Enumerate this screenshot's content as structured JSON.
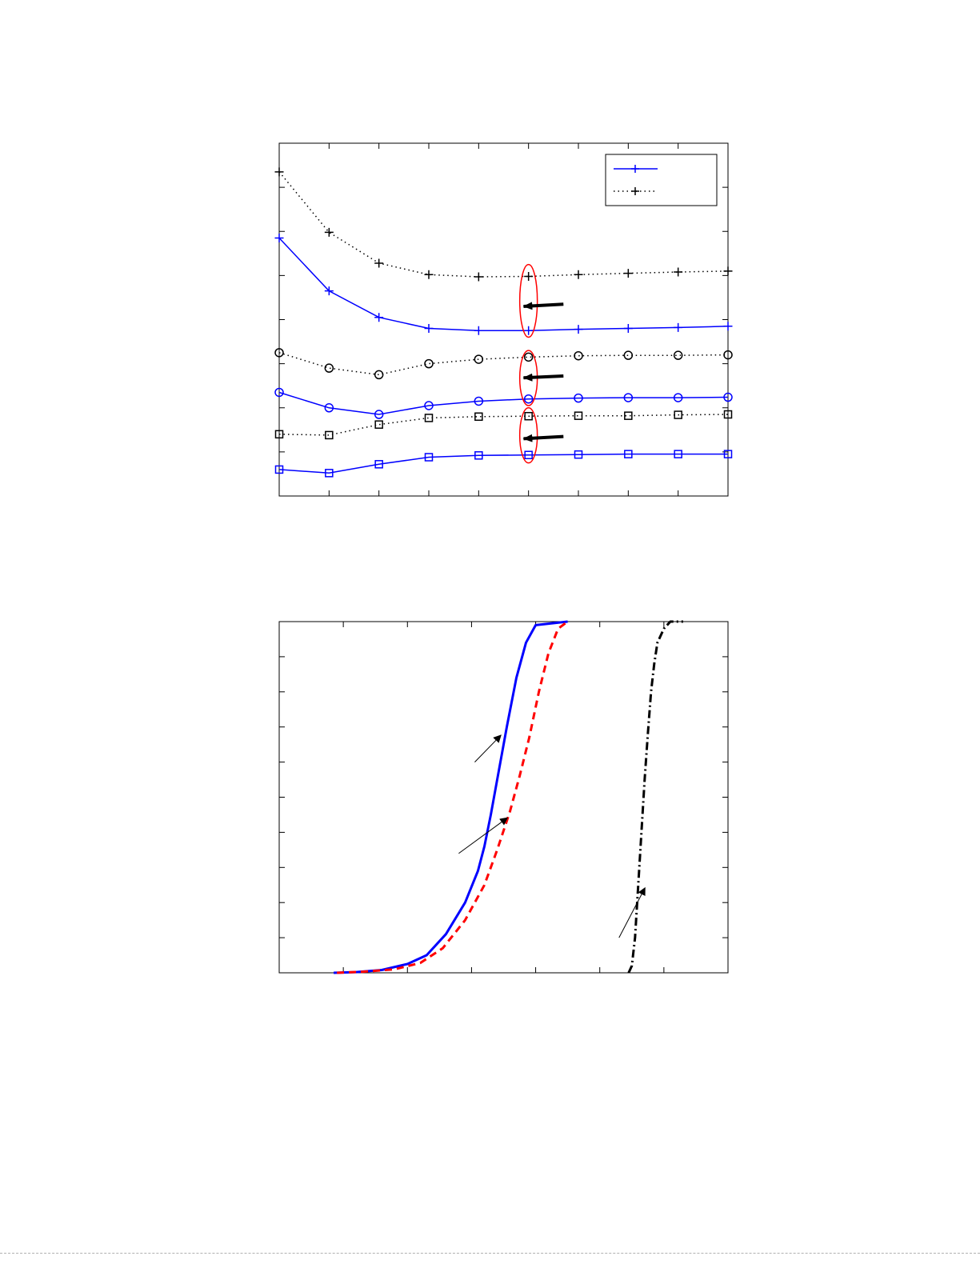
{
  "chart_data": [
    {
      "type": "line",
      "x": [
        1,
        2,
        3,
        4,
        5,
        6,
        7,
        8,
        9,
        10
      ],
      "xlim": [
        1,
        10
      ],
      "ylim": [
        0,
        8
      ],
      "grid": false,
      "legend": {
        "placement": "top-right",
        "entries": [
          "",
          ""
        ]
      },
      "series": [
        {
          "marker": "plus",
          "style": "solid",
          "color": "#0000ff",
          "values": [
            5.85,
            4.65,
            4.05,
            3.8,
            3.75,
            3.75,
            3.78,
            3.8,
            3.82,
            3.85
          ]
        },
        {
          "marker": "plus",
          "style": "dotted",
          "color": "#000000",
          "values": [
            7.35,
            5.98,
            5.28,
            5.02,
            4.97,
            4.98,
            5.02,
            5.05,
            5.08,
            5.1
          ]
        },
        {
          "marker": "circle",
          "style": "solid",
          "color": "#0000ff",
          "values": [
            2.35,
            2.0,
            1.85,
            2.05,
            2.15,
            2.2,
            2.22,
            2.23,
            2.23,
            2.24
          ]
        },
        {
          "marker": "circle",
          "style": "dotted",
          "color": "#000000",
          "values": [
            3.25,
            2.9,
            2.75,
            3.0,
            3.1,
            3.15,
            3.18,
            3.19,
            3.19,
            3.2
          ]
        },
        {
          "marker": "square",
          "style": "solid",
          "color": "#0000ff",
          "values": [
            0.6,
            0.52,
            0.72,
            0.88,
            0.92,
            0.93,
            0.94,
            0.95,
            0.95,
            0.95
          ]
        },
        {
          "marker": "square",
          "style": "dotted",
          "color": "#000000",
          "values": [
            1.4,
            1.38,
            1.62,
            1.77,
            1.8,
            1.81,
            1.82,
            1.82,
            1.84,
            1.85
          ]
        }
      ],
      "annotations": [
        {
          "kind": "ellipse",
          "x": 6,
          "y_range": [
            3.6,
            5.25
          ],
          "color": "#ff0000"
        },
        {
          "kind": "ellipse",
          "x": 6,
          "y_range": [
            2.05,
            3.3
          ],
          "color": "#ff0000"
        },
        {
          "kind": "ellipse",
          "x": 6,
          "y_range": [
            0.75,
            2.0
          ],
          "color": "#ff0000"
        },
        {
          "kind": "arrow",
          "from": [
            6.7,
            4.35
          ],
          "to": [
            5.9,
            4.3
          ],
          "color": "#000000"
        },
        {
          "kind": "arrow",
          "from": [
            6.7,
            2.72
          ],
          "to": [
            5.9,
            2.68
          ],
          "color": "#000000"
        },
        {
          "kind": "arrow",
          "from": [
            6.7,
            1.35
          ],
          "to": [
            5.9,
            1.3
          ],
          "color": "#000000"
        }
      ]
    },
    {
      "type": "line",
      "xlim": [
        0,
        7
      ],
      "ylim": [
        0,
        1
      ],
      "grid": false,
      "series": [
        {
          "style": "solid",
          "color": "#0000ff",
          "x": [
            0.85,
            1.2,
            1.6,
            2.0,
            2.3,
            2.6,
            2.9,
            3.1,
            3.2,
            3.3,
            3.4,
            3.55,
            3.7,
            3.85,
            4.0,
            4.5
          ],
          "y": [
            0.0,
            0.002,
            0.008,
            0.025,
            0.05,
            0.11,
            0.2,
            0.29,
            0.36,
            0.45,
            0.55,
            0.7,
            0.84,
            0.94,
            0.99,
            1.0
          ]
        },
        {
          "style": "dashed",
          "color": "#ff0000",
          "x": [
            0.9,
            1.3,
            1.8,
            2.2,
            2.55,
            2.9,
            3.2,
            3.4,
            3.6,
            3.75,
            3.9,
            4.05,
            4.2,
            4.35,
            4.5
          ],
          "y": [
            0.0,
            0.003,
            0.01,
            0.028,
            0.07,
            0.15,
            0.25,
            0.35,
            0.46,
            0.56,
            0.67,
            0.8,
            0.91,
            0.98,
            1.0
          ]
        },
        {
          "style": "dash-dot",
          "color": "#000000",
          "x": [
            5.45,
            5.5,
            5.55,
            5.6,
            5.65,
            5.7,
            5.75,
            5.8,
            5.85,
            5.9,
            6.0,
            6.1,
            6.2,
            6.3
          ],
          "y": [
            0.0,
            0.02,
            0.1,
            0.25,
            0.4,
            0.55,
            0.68,
            0.8,
            0.88,
            0.94,
            0.98,
            1.0,
            1.0,
            1.0
          ]
        }
      ],
      "annotations": [
        {
          "kind": "arrow",
          "from": [
            3.05,
            0.6
          ],
          "to": [
            3.45,
            0.675
          ],
          "color": "#000000"
        },
        {
          "kind": "arrow",
          "from": [
            2.8,
            0.34
          ],
          "to": [
            3.55,
            0.44
          ],
          "color": "#000000"
        },
        {
          "kind": "arrow",
          "from": [
            5.3,
            0.1
          ],
          "to": [
            5.7,
            0.24
          ],
          "color": "#000000"
        }
      ]
    }
  ]
}
